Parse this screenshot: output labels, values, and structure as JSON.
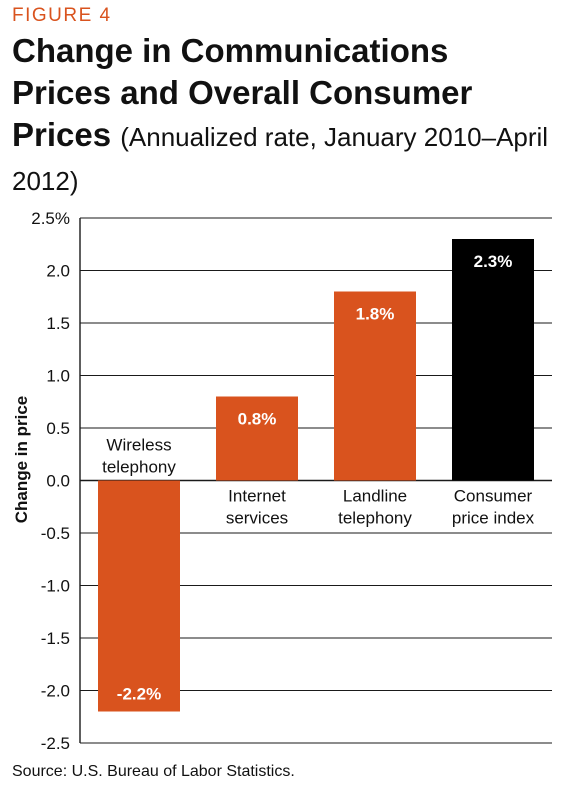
{
  "figure_label": "FIGURE 4",
  "title_main": "Change in Communications Prices and Overall Consumer Prices",
  "title_sub": "(Annualized rate, January 2010–April 2012)",
  "source": "Source: U.S. Bureau of Labor Statistics.",
  "colors": {
    "accent": "#d9531e",
    "cpi_bar": "#000000",
    "grid": "#1a1a1a"
  },
  "chart_data": {
    "type": "bar",
    "ylabel": "Change in price",
    "ylim": [
      -2.5,
      2.5
    ],
    "yticks": [
      "2.5%",
      "2.0",
      "1.5",
      "1.0",
      "0.5",
      "0.0",
      "-0.5",
      "-1.0",
      "-1.5",
      "-2.0",
      "-2.5"
    ],
    "ytick_values": [
      2.5,
      2.0,
      1.5,
      1.0,
      0.5,
      0.0,
      -0.5,
      -1.0,
      -1.5,
      -2.0,
      -2.5
    ],
    "grid": true,
    "categories": [
      [
        "Wireless",
        "telephony"
      ],
      [
        "Internet",
        "services"
      ],
      [
        "Landline",
        "telephony"
      ],
      [
        "Consumer",
        "price index"
      ]
    ],
    "values": [
      -2.2,
      0.8,
      1.8,
      2.3
    ],
    "data_labels": [
      "-2.2%",
      "0.8%",
      "1.8%",
      "2.3%"
    ],
    "bar_colors": [
      "#d9531e",
      "#d9531e",
      "#d9531e",
      "#000000"
    ]
  }
}
